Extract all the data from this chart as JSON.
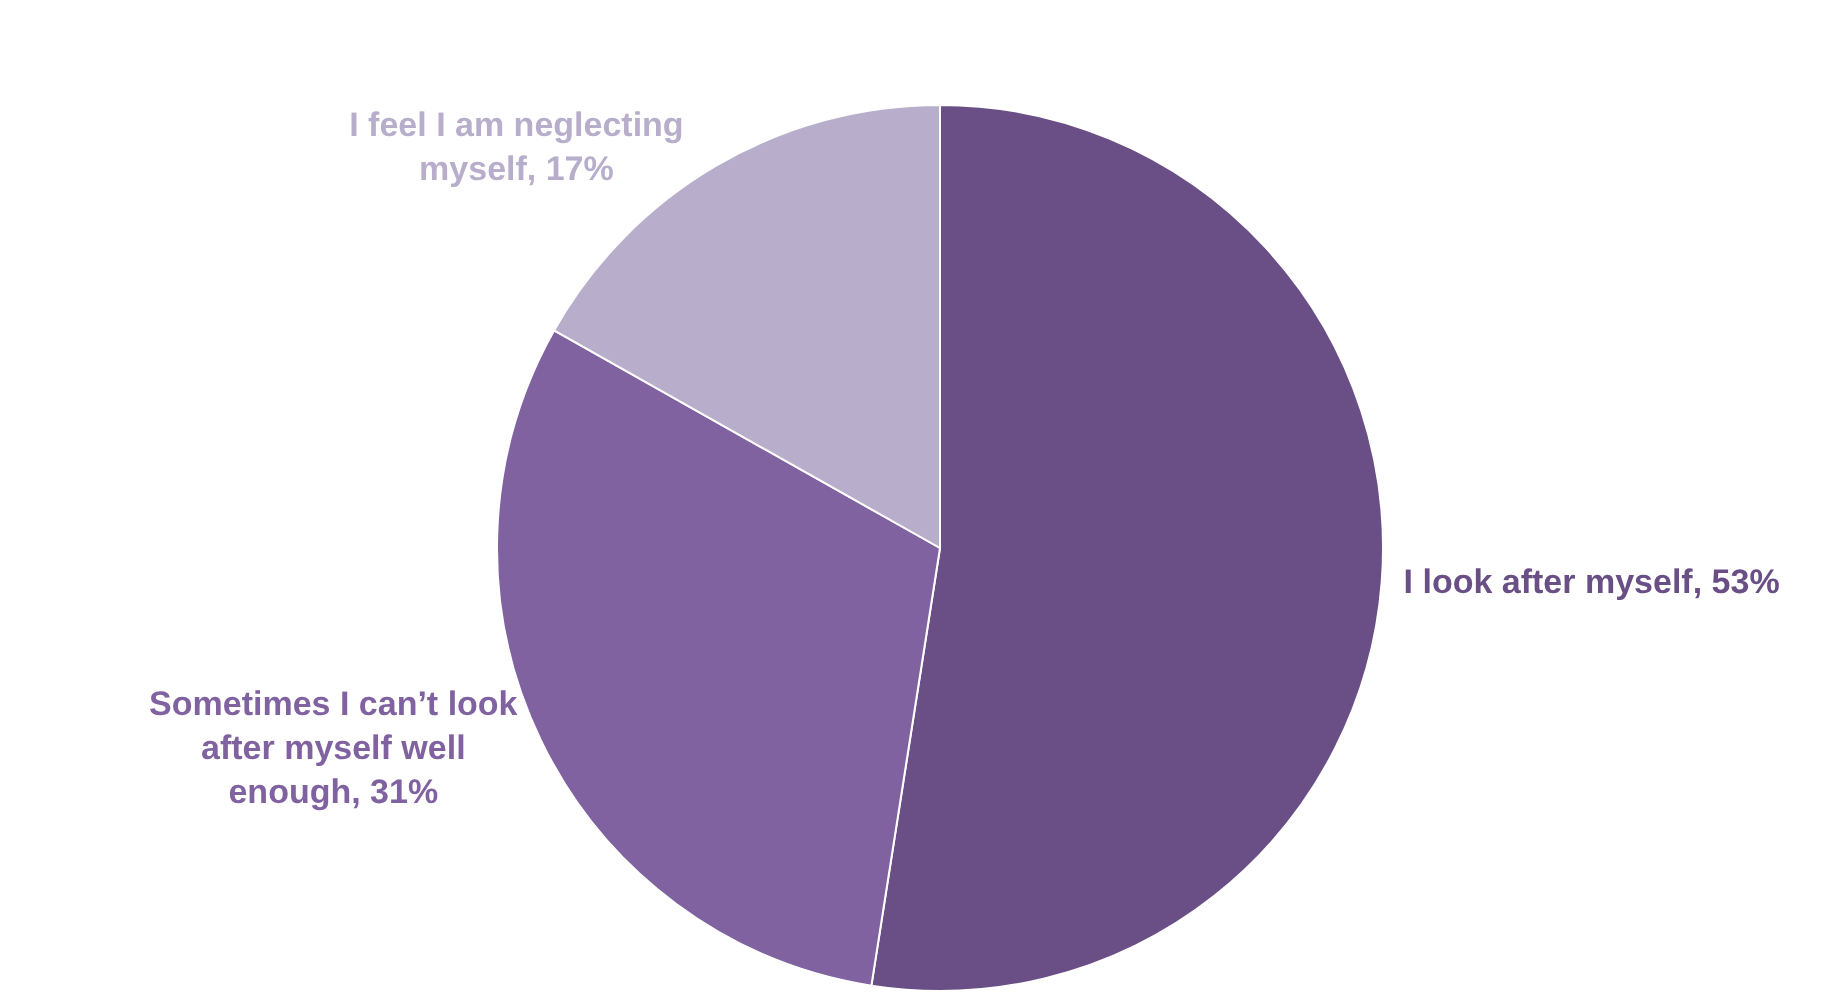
{
  "chart_data": {
    "type": "pie",
    "categories": [
      "I look after myself",
      "Sometimes I can’t look after myself well enough",
      "I feel I am neglecting myself"
    ],
    "values": [
      53,
      31,
      17
    ],
    "colors": [
      "#6a4f86",
      "#8062a0",
      "#b8aecb"
    ],
    "value_labels": [
      "53%",
      "31%",
      "17%"
    ],
    "legend": false
  }
}
